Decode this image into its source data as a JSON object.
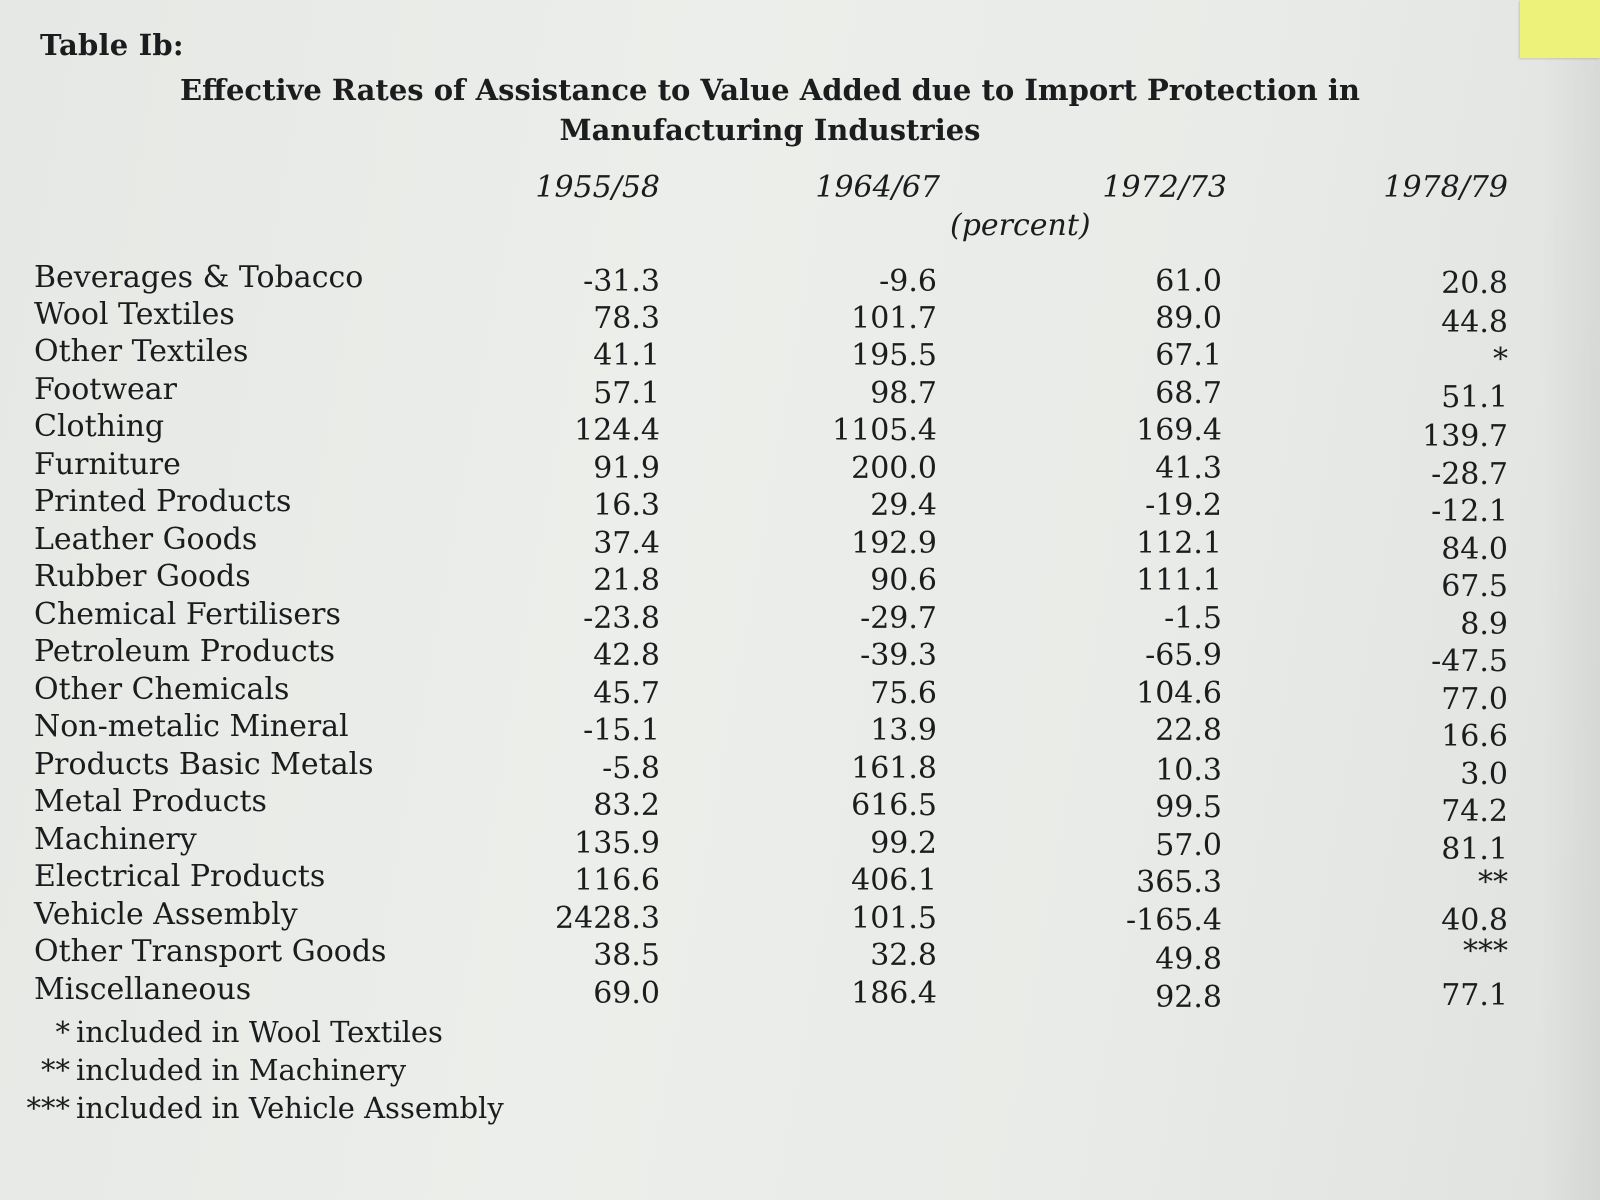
{
  "table_label": "Table Ib:",
  "title": "Effective Rates of Assistance to Value Added due to Import Protection in Manufacturing Industries",
  "columns": [
    "1955/58",
    "1964/67",
    "1972/73",
    "1978/79"
  ],
  "unit": "(percent)",
  "rows": [
    {
      "label": "Beverages & Tobacco",
      "values": [
        "-31.3",
        "-9.6",
        "61.0",
        "20.8"
      ]
    },
    {
      "label": "Wool Textiles",
      "values": [
        "78.3",
        "101.7",
        "89.0",
        "44.8"
      ]
    },
    {
      "label": "Other Textiles",
      "values": [
        "41.1",
        "195.5",
        "67.1",
        "*"
      ]
    },
    {
      "label": "Footwear",
      "values": [
        "57.1",
        "98.7",
        "68.7",
        "51.1"
      ]
    },
    {
      "label": "Clothing",
      "values": [
        "124.4",
        "1105.4",
        "169.4",
        "139.7"
      ]
    },
    {
      "label": "Furniture",
      "values": [
        "91.9",
        "200.0",
        "41.3",
        "-28.7"
      ]
    },
    {
      "label": "Printed Products",
      "values": [
        "16.3",
        "29.4",
        "-19.2",
        "-12.1"
      ]
    },
    {
      "label": "Leather Goods",
      "values": [
        "37.4",
        "192.9",
        "112.1",
        "84.0"
      ]
    },
    {
      "label": "Rubber Goods",
      "values": [
        "21.8",
        "90.6",
        "111.1",
        "67.5"
      ]
    },
    {
      "label": "Chemical Fertilisers",
      "values": [
        "-23.8",
        "-29.7",
        "-1.5",
        "8.9"
      ]
    },
    {
      "label": "Petroleum Products",
      "values": [
        "42.8",
        "-39.3",
        "-65.9",
        "-47.5"
      ]
    },
    {
      "label": "Other Chemicals",
      "values": [
        "45.7",
        "75.6",
        "104.6",
        "77.0"
      ]
    },
    {
      "label": "Non-metalic Mineral",
      "values": [
        "-15.1",
        "13.9",
        "22.8",
        "16.6"
      ]
    },
    {
      "label": "Products Basic Metals",
      "values": [
        "-5.8",
        "161.8",
        "10.3",
        "3.0"
      ]
    },
    {
      "label": "Metal Products",
      "values": [
        "83.2",
        "616.5",
        "99.5",
        "74.2"
      ]
    },
    {
      "label": "Machinery",
      "values": [
        "135.9",
        "99.2",
        "57.0",
        "81.1"
      ]
    },
    {
      "label": "Electrical Products",
      "values": [
        "116.6",
        "406.1",
        "365.3",
        "**"
      ]
    },
    {
      "label": "Vehicle Assembly",
      "values": [
        "2428.3",
        "101.5",
        "-165.4",
        "40.8"
      ]
    },
    {
      "label": "Other Transport Goods",
      "values": [
        "38.5",
        "32.8",
        "49.8",
        "***"
      ]
    },
    {
      "label": "Miscellaneous",
      "values": [
        "69.0",
        "186.4",
        "92.8",
        "77.1"
      ]
    }
  ],
  "footnotes": [
    {
      "mark": "*",
      "text": "included in Wool Textiles"
    },
    {
      "mark": "**",
      "text": "included in Machinery"
    },
    {
      "mark": "***",
      "text": "included in Vehicle Assembly"
    }
  ]
}
